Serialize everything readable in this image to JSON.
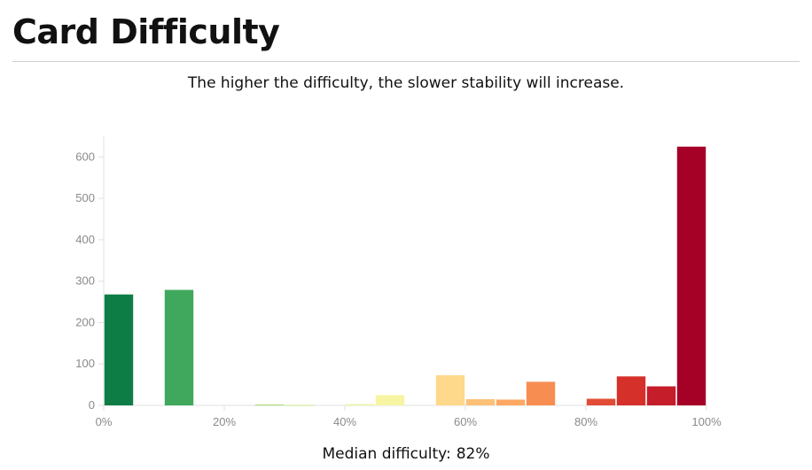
{
  "page": {
    "title": "Card Difficulty",
    "subtitle": "The higher the difficulty, the slower stability will increase.",
    "median_label": "Median difficulty:",
    "median_value": "82%"
  },
  "chart_data": {
    "type": "bar",
    "title": "",
    "xlabel": "",
    "ylabel": "",
    "x_ticks": [
      "0%",
      "20%",
      "40%",
      "60%",
      "80%",
      "100%"
    ],
    "y_ticks": [
      0,
      100,
      200,
      300,
      400,
      500,
      600
    ],
    "xlim": [
      0,
      100
    ],
    "ylim": [
      0,
      650
    ],
    "grid": false,
    "bins": [
      {
        "start": 0,
        "end": 5,
        "value": 268,
        "color": "#0e7d45"
      },
      {
        "start": 5,
        "end": 10,
        "value": 0,
        "color": "#1f9452"
      },
      {
        "start": 10,
        "end": 15,
        "value": 279,
        "color": "#40a85c"
      },
      {
        "start": 15,
        "end": 20,
        "value": 0,
        "color": "#66bd63"
      },
      {
        "start": 20,
        "end": 25,
        "value": 0,
        "color": "#85cb66"
      },
      {
        "start": 25,
        "end": 30,
        "value": 2,
        "color": "#a6d96a"
      },
      {
        "start": 30,
        "end": 35,
        "value": 1,
        "color": "#c4e585"
      },
      {
        "start": 35,
        "end": 40,
        "value": 0,
        "color": "#d9ef8b"
      },
      {
        "start": 40,
        "end": 45,
        "value": 3,
        "color": "#eaf5a0"
      },
      {
        "start": 45,
        "end": 50,
        "value": 25,
        "color": "#f7f5a4"
      },
      {
        "start": 50,
        "end": 55,
        "value": 0,
        "color": "#fee590"
      },
      {
        "start": 55,
        "end": 60,
        "value": 73,
        "color": "#fed98b"
      },
      {
        "start": 60,
        "end": 65,
        "value": 15,
        "color": "#fdc077"
      },
      {
        "start": 65,
        "end": 70,
        "value": 14,
        "color": "#fca863"
      },
      {
        "start": 70,
        "end": 75,
        "value": 57,
        "color": "#f88d52"
      },
      {
        "start": 75,
        "end": 80,
        "value": 0,
        "color": "#f06a43"
      },
      {
        "start": 80,
        "end": 85,
        "value": 16,
        "color": "#e24c36"
      },
      {
        "start": 85,
        "end": 90,
        "value": 70,
        "color": "#d6302b"
      },
      {
        "start": 90,
        "end": 95,
        "value": 46,
        "color": "#c51d2a"
      },
      {
        "start": 95,
        "end": 100,
        "value": 625,
        "color": "#a50026"
      }
    ]
  }
}
